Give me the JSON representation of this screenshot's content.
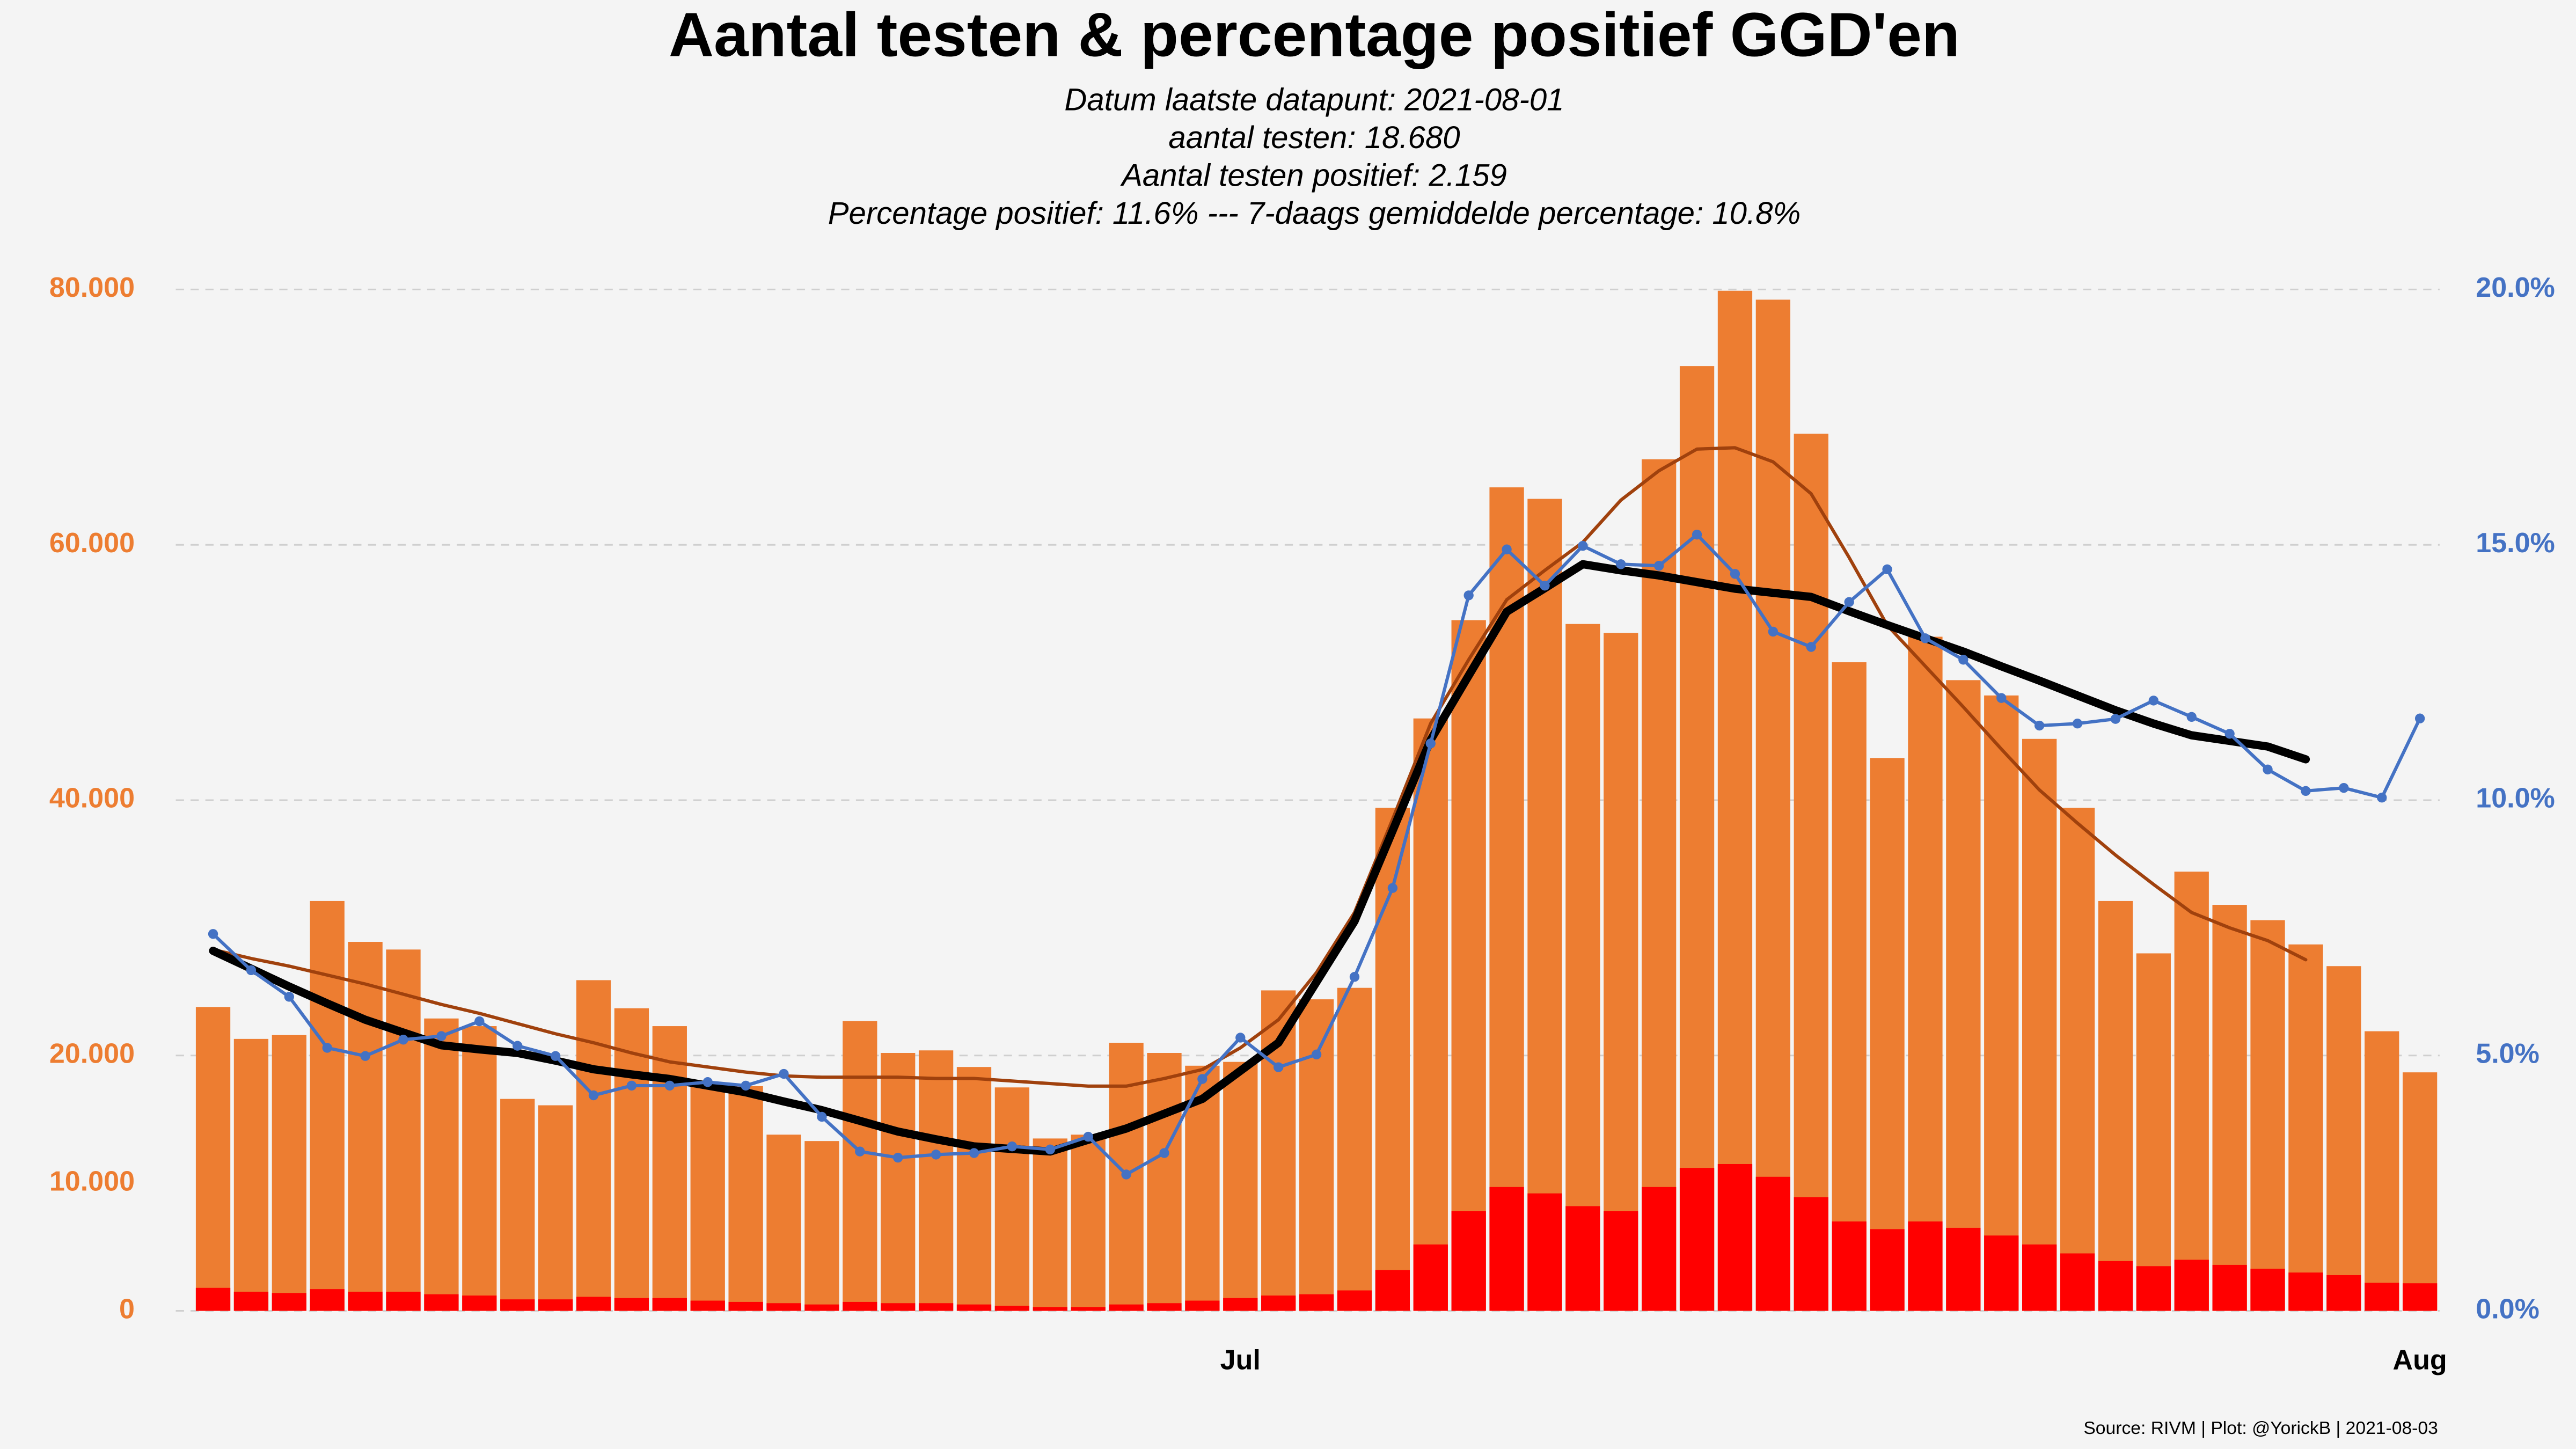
{
  "chart_data": {
    "type": "bar",
    "title": "Aantal testen & percentage positief GGD'en",
    "subtitle": [
      "Datum laatste datapunt: 2021-08-01",
      "aantal testen: 18.680",
      "Aantal testen positief: 2.159",
      "Percentage positief: 11.6%    ---   7-daags gemiddelde percentage: 10.8%"
    ],
    "source": "Source: RIVM | Plot: @YorickB |  2021-08-03",
    "barmode": "overlay",
    "grid": true,
    "categories": [
      null,
      null,
      null,
      null,
      null,
      null,
      null,
      null,
      null,
      null,
      null,
      null,
      null,
      null,
      null,
      null,
      null,
      null,
      null,
      null,
      null,
      null,
      null,
      null,
      null,
      null,
      null,
      "Jul",
      null,
      null,
      null,
      null,
      null,
      null,
      null,
      null,
      null,
      null,
      null,
      null,
      null,
      null,
      null,
      null,
      null,
      null,
      null,
      null,
      null,
      null,
      null,
      null,
      null,
      null,
      null,
      null,
      null,
      null,
      "Aug"
    ],
    "ylim": [
      0,
      80000
    ],
    "yticks": [
      0,
      {
        "value": 10000,
        "label": "10.000"
      },
      {
        "value": 20000,
        "label": "20.000"
      },
      {
        "value": 40000,
        "label": "40.000"
      },
      {
        "value": 60000,
        "label": "60.000"
      },
      {
        "value": 80000,
        "label": "80.000"
      }
    ],
    "y_color": "#ED7D31",
    "y2lim": [
      0,
      20
    ],
    "y2ticks": [
      {
        "value": 0,
        "label": "0.0%"
      },
      {
        "value": 5,
        "label": "5.0%"
      },
      {
        "value": 10,
        "label": "10.0%"
      },
      {
        "value": 15,
        "label": "15.0%"
      },
      {
        "value": 20,
        "label": "20.0%"
      }
    ],
    "y2_color": "#4472C4",
    "series": [
      {
        "type": "bar",
        "color": "#ED7D31",
        "values": [
          23800,
          21300,
          21600,
          32100,
          28900,
          28300,
          22900,
          22300,
          16600,
          16100,
          25900,
          23700,
          22300,
          17900,
          17600,
          13800,
          13300,
          22700,
          20200,
          20400,
          19100,
          17500,
          13500,
          13800,
          21000,
          20200,
          19200,
          19500,
          25100,
          24400,
          25300,
          39400,
          46400,
          54100,
          64500,
          63600,
          53800,
          53100,
          66700,
          74000,
          79900,
          79200,
          68700,
          50800,
          43300,
          52800,
          49400,
          48200,
          44800,
          39400,
          32100,
          28000,
          34400,
          31800,
          30600,
          28700,
          27000,
          21900,
          18680
        ]
      },
      {
        "type": "bar",
        "color": "#FF0000",
        "values": [
          1800,
          1500,
          1400,
          1700,
          1500,
          1500,
          1300,
          1200,
          900,
          900,
          1100,
          1000,
          1000,
          800,
          700,
          600,
          500,
          700,
          600,
          600,
          500,
          400,
          300,
          300,
          500,
          600,
          800,
          1000,
          1200,
          1300,
          1600,
          3200,
          5200,
          7800,
          9700,
          9200,
          8200,
          7800,
          9700,
          11200,
          11500,
          10500,
          8900,
          7000,
          6400,
          7000,
          6500,
          5900,
          5200,
          4500,
          3900,
          3500,
          4000,
          3600,
          3300,
          3000,
          2800,
          2200,
          2159
        ]
      },
      {
        "type": "line",
        "color": "#A0410D",
        "values": [
          28300,
          27600,
          27000,
          26300,
          25600,
          24800,
          24000,
          23300,
          22500,
          21700,
          21000,
          20200,
          19500,
          19100,
          18700,
          18400,
          18300,
          18300,
          18300,
          18200,
          18200,
          18000,
          17800,
          17600,
          17600,
          18200,
          18900,
          20600,
          22800,
          26500,
          31200,
          38500,
          46000,
          51000,
          55700,
          58000,
          60200,
          63500,
          65800,
          67500,
          67600,
          66500,
          64000,
          59000,
          53700,
          50500,
          47300,
          44000,
          40800,
          38200,
          35700,
          33400,
          31200,
          30000,
          29000,
          27500,
          null,
          null,
          null
        ]
      },
      {
        "type": "line",
        "axis": "y2",
        "color": "#000000",
        "values": [
          7.05,
          6.7,
          6.35,
          6.02,
          5.7,
          5.45,
          5.2,
          5.12,
          5.05,
          4.9,
          4.73,
          4.63,
          4.54,
          4.41,
          4.28,
          4.1,
          3.93,
          3.72,
          3.51,
          3.36,
          3.22,
          3.17,
          3.12,
          3.35,
          3.57,
          3.86,
          4.15,
          4.7,
          5.25,
          6.44,
          7.63,
          9.4,
          11.18,
          12.44,
          13.69,
          14.15,
          14.62,
          14.5,
          14.4,
          14.27,
          14.14,
          14.06,
          13.98,
          13.7,
          13.43,
          13.17,
          12.91,
          12.62,
          12.34,
          12.05,
          11.76,
          11.5,
          11.27,
          11.16,
          11.05,
          10.8,
          null,
          null,
          null
        ]
      },
      {
        "type": "line",
        "axis": "y2",
        "marker": true,
        "color": "#4472C4",
        "values": [
          7.38,
          6.67,
          6.15,
          5.15,
          4.99,
          5.31,
          5.38,
          5.67,
          5.19,
          4.99,
          4.22,
          4.41,
          4.41,
          4.48,
          4.41,
          4.64,
          3.8,
          3.12,
          3.0,
          3.06,
          3.09,
          3.22,
          3.16,
          3.41,
          2.67,
          3.09,
          4.54,
          5.35,
          4.77,
          5.02,
          6.54,
          8.28,
          11.11,
          14.01,
          14.91,
          14.2,
          14.98,
          14.62,
          14.59,
          15.2,
          14.43,
          13.3,
          13.0,
          13.88,
          14.52,
          13.17,
          12.75,
          12.0,
          11.46,
          11.5,
          11.59,
          11.95,
          11.63,
          11.3,
          10.6,
          10.18,
          10.24,
          10.05,
          11.6
        ]
      }
    ]
  }
}
